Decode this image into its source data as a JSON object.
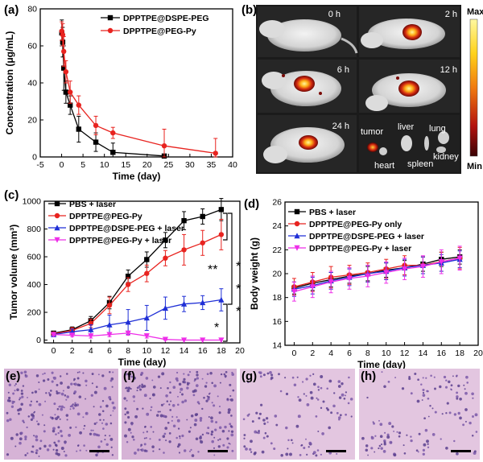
{
  "panels": {
    "a": "(a)",
    "b": "(b)",
    "c": "(c)",
    "d": "(d)",
    "e": "(e)",
    "f": "(f)",
    "g": "(g)",
    "h": "(h)"
  },
  "imaging": {
    "timepoints": [
      "0 h",
      "2 h",
      "6 h",
      "12 h",
      "24 h"
    ],
    "organs": [
      "tumor",
      "liver",
      "lung",
      "heart",
      "spleen",
      "kidney"
    ],
    "colorbar_max": "Max",
    "colorbar_min": "Min"
  },
  "significance": [
    "**",
    "*",
    "*",
    "*",
    "*"
  ],
  "colors": {
    "black": "#000000",
    "red": "#e8231f",
    "blue": "#1f2fd6",
    "magenta": "#ee2ee8",
    "histo_bg": "#d9b8d8",
    "histo_cell": "#5b3f8e"
  },
  "chart_data": [
    {
      "id": "a",
      "type": "line",
      "xlabel": "Time (day)",
      "ylabel": "Concentration (μg/mL)",
      "xlim": [
        -5,
        40
      ],
      "ylim": [
        0,
        80
      ],
      "xticks": [
        -5,
        0,
        5,
        10,
        15,
        20,
        25,
        30,
        35,
        40
      ],
      "yticks": [
        0,
        20,
        40,
        60,
        80
      ],
      "legend_position": "top-right",
      "series": [
        {
          "name": "DPPTPE@DSPE-PEG",
          "color": "#000000",
          "marker": "square",
          "x": [
            0.04,
            0.25,
            0.5,
            1,
            2,
            4,
            8,
            12,
            24
          ],
          "y": [
            67,
            62,
            48,
            35,
            28,
            15,
            8,
            2.5,
            0.5
          ],
          "err": [
            7,
            8,
            12,
            6,
            5,
            7,
            5,
            5,
            1
          ]
        },
        {
          "name": "DPPTPE@PEG-Py",
          "color": "#e8231f",
          "marker": "circle",
          "x": [
            0.04,
            0.25,
            0.5,
            1,
            2,
            4,
            8,
            12,
            24,
            36
          ],
          "y": [
            68,
            66,
            57,
            46,
            35,
            28,
            17,
            13,
            6,
            2
          ],
          "err": [
            5,
            6,
            8,
            6,
            6,
            5,
            5,
            3,
            9,
            8
          ]
        }
      ]
    },
    {
      "id": "c",
      "type": "line",
      "xlabel": "Time (day)",
      "ylabel": "Tumor volume (mm³)",
      "xlim": [
        -1,
        20
      ],
      "ylim": [
        -20,
        1000
      ],
      "xticks": [
        0,
        2,
        4,
        6,
        8,
        10,
        12,
        14,
        16,
        18,
        20
      ],
      "yticks": [
        0,
        200,
        400,
        600,
        800,
        1000
      ],
      "legend_position": "top-left",
      "series": [
        {
          "name": "PBS + laser",
          "color": "#000000",
          "marker": "square",
          "x": [
            0,
            2,
            4,
            6,
            8,
            10,
            12,
            14,
            16,
            18
          ],
          "y": [
            50,
            75,
            140,
            270,
            460,
            580,
            720,
            860,
            890,
            940
          ],
          "err": [
            10,
            20,
            30,
            45,
            45,
            55,
            55,
            65,
            55,
            80
          ]
        },
        {
          "name": "DPPTPE@PEG-Py",
          "color": "#e8231f",
          "marker": "circle",
          "x": [
            0,
            2,
            4,
            6,
            8,
            10,
            12,
            14,
            16,
            18
          ],
          "y": [
            45,
            70,
            120,
            250,
            400,
            480,
            590,
            650,
            700,
            760
          ],
          "err": [
            10,
            20,
            30,
            60,
            50,
            60,
            55,
            110,
            90,
            110
          ]
        },
        {
          "name": "DPPTPE@DSPE-PEG + laser",
          "color": "#1f2fd6",
          "marker": "triangle-up",
          "x": [
            0,
            2,
            4,
            6,
            8,
            10,
            12,
            14,
            16,
            18
          ],
          "y": [
            40,
            60,
            75,
            110,
            130,
            160,
            230,
            260,
            270,
            290
          ],
          "err": [
            10,
            20,
            35,
            70,
            90,
            90,
            80,
            55,
            50,
            80
          ]
        },
        {
          "name": "DPPTPE@PEG-Py + laser",
          "color": "#ee2ee8",
          "marker": "triangle-down",
          "x": [
            0,
            2,
            4,
            6,
            8,
            10,
            12,
            14,
            16,
            18
          ],
          "y": [
            40,
            35,
            30,
            40,
            50,
            30,
            5,
            0,
            0,
            0
          ],
          "err": [
            10,
            10,
            15,
            15,
            15,
            15,
            5,
            0,
            0,
            0
          ]
        }
      ]
    },
    {
      "id": "d",
      "type": "line",
      "xlabel": "Time (day)",
      "ylabel": "Body weight (g)",
      "xlim": [
        -1,
        20
      ],
      "ylim": [
        14,
        26
      ],
      "xticks": [
        0,
        2,
        4,
        6,
        8,
        10,
        12,
        14,
        16,
        18,
        20
      ],
      "yticks": [
        14,
        16,
        18,
        20,
        22,
        24,
        26
      ],
      "legend_position": "top-left",
      "series": [
        {
          "name": "PBS + laser",
          "color": "#000000",
          "marker": "square",
          "x": [
            0,
            2,
            4,
            6,
            8,
            10,
            12,
            14,
            16,
            18
          ],
          "y": [
            18.8,
            19.2,
            19.5,
            19.8,
            20.0,
            20.3,
            20.5,
            20.8,
            21.2,
            21.4
          ],
          "err": [
            0.5,
            0.6,
            0.6,
            0.6,
            0.6,
            0.6,
            0.6,
            0.6,
            0.6,
            0.6
          ]
        },
        {
          "name": "DPPTPE@PEG-Py only",
          "color": "#e8231f",
          "marker": "circle",
          "x": [
            0,
            2,
            4,
            6,
            8,
            10,
            12,
            14,
            16,
            18
          ],
          "y": [
            18.9,
            19.3,
            19.7,
            19.9,
            20.1,
            20.4,
            20.7,
            20.7,
            21.0,
            21.3
          ],
          "err": [
            0.7,
            0.8,
            0.9,
            0.8,
            0.8,
            0.8,
            0.8,
            0.7,
            0.8,
            0.9
          ]
        },
        {
          "name": "DPPTPE@DSPE-PEG + laser",
          "color": "#1f2fd6",
          "marker": "triangle-up",
          "x": [
            0,
            2,
            4,
            6,
            8,
            10,
            12,
            14,
            16,
            18
          ],
          "y": [
            18.7,
            19.0,
            19.4,
            19.7,
            20.0,
            20.2,
            20.5,
            20.7,
            20.9,
            21.2
          ],
          "err": [
            0.6,
            0.7,
            0.7,
            0.7,
            0.7,
            0.7,
            0.7,
            0.7,
            0.7,
            0.7
          ]
        },
        {
          "name": "DPPTPE@PEG-Py + laser",
          "color": "#ee2ee8",
          "marker": "triangle-down",
          "x": [
            0,
            2,
            4,
            6,
            8,
            10,
            12,
            14,
            16,
            18
          ],
          "y": [
            18.5,
            18.9,
            19.3,
            19.6,
            19.8,
            20.1,
            20.4,
            20.6,
            21.0,
            21.3
          ],
          "err": [
            0.8,
            0.9,
            0.9,
            0.9,
            0.9,
            0.9,
            0.9,
            0.9,
            1.0,
            1.0
          ]
        }
      ]
    }
  ]
}
